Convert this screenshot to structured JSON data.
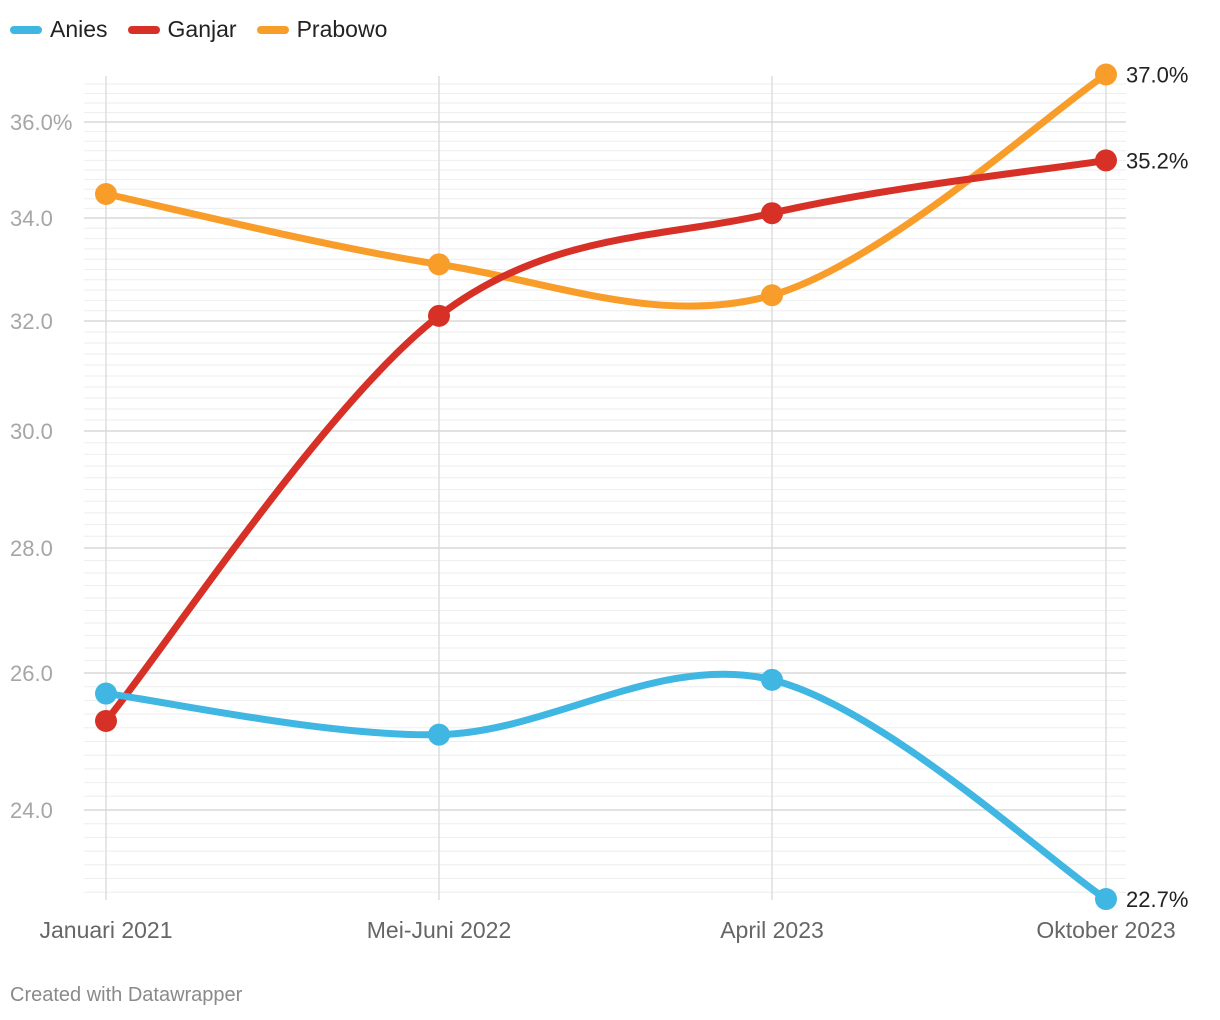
{
  "chart_data": {
    "type": "line",
    "categories": [
      "Januari 2021",
      "Mei-Juni 2022",
      "April 2023",
      "Oktober 2023"
    ],
    "series": [
      {
        "name": "Anies",
        "color": "#40b6e2",
        "values": [
          25.7,
          25.1,
          25.9,
          22.7
        ],
        "end_label": "22.7%"
      },
      {
        "name": "Ganjar",
        "color": "#d73027",
        "values": [
          25.3,
          32.1,
          34.1,
          35.2
        ],
        "end_label": "35.2%"
      },
      {
        "name": "Prabowo",
        "color": "#f99d2a",
        "values": [
          34.5,
          33.1,
          32.5,
          37.0
        ],
        "end_label": "37.0%"
      }
    ],
    "y_ticks": [
      "24.0",
      "26.0",
      "28.0",
      "30.0",
      "32.0",
      "34.0",
      "36.0%"
    ],
    "legend_position": "top-left",
    "grid": true
  },
  "footer": "Created with Datawrapper"
}
